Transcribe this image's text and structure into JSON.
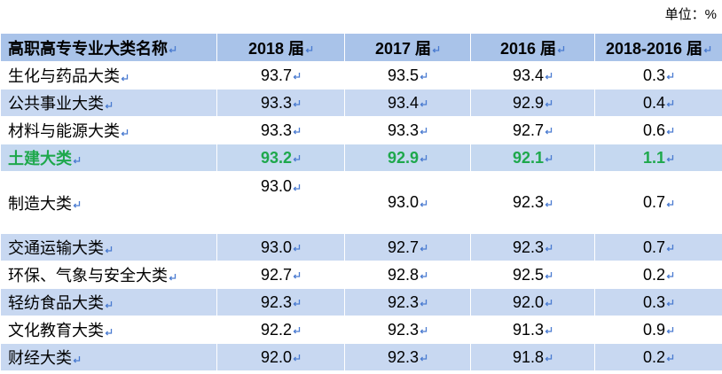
{
  "unit": "单位：%",
  "table": {
    "header": [
      "高职高专专业大类名称",
      "2018 届",
      "2017 届",
      "2016 届",
      "2018-2016 届"
    ],
    "rows": [
      [
        "生化与药品大类",
        "93.7",
        "93.5",
        "93.4",
        "0.3"
      ],
      [
        "公共事业大类",
        "93.3",
        "93.4",
        "92.9",
        "0.4"
      ],
      [
        "材料与能源大类",
        "93.3",
        "93.3",
        "92.7",
        "0.6"
      ],
      [
        "土建大类",
        "93.2",
        "92.9",
        "92.1",
        "1.1"
      ],
      [
        "制造大类",
        "93.0",
        "93.0",
        "92.3",
        "0.7"
      ],
      [
        "交通运输大类",
        "93.0",
        "92.7",
        "92.3",
        "0.7"
      ],
      [
        "环保、气象与安全大类",
        "92.7",
        "92.8",
        "92.5",
        "0.2"
      ],
      [
        "轻纺食品大类",
        "92.3",
        "92.3",
        "92.0",
        "0.3"
      ],
      [
        "文化教育大类",
        "92.2",
        "92.3",
        "91.3",
        "0.9"
      ],
      [
        "财经大类",
        "92.0",
        "92.3",
        "91.8",
        "0.2"
      ]
    ]
  }
}
